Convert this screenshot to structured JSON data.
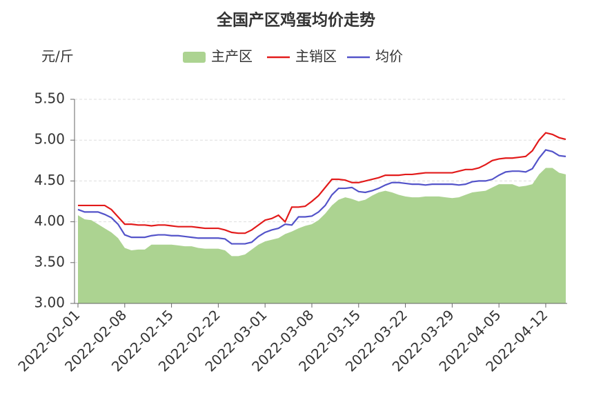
{
  "chart_data": {
    "type": "line",
    "title": "全国产区鸡蛋均价走势",
    "y_unit": "元/斤",
    "categories": [
      "2022-02-01",
      null,
      null,
      null,
      null,
      null,
      null,
      "2022-02-08",
      null,
      null,
      null,
      null,
      null,
      null,
      "2022-02-15",
      null,
      null,
      null,
      null,
      null,
      null,
      "2022-02-22",
      null,
      null,
      null,
      null,
      null,
      null,
      "2022-03-01",
      null,
      null,
      null,
      null,
      null,
      null,
      "2022-03-08",
      null,
      null,
      null,
      null,
      null,
      null,
      "2022-03-15",
      null,
      null,
      null,
      null,
      null,
      null,
      "2022-03-22",
      null,
      null,
      null,
      null,
      null,
      null,
      "2022-03-29",
      null,
      null,
      null,
      null,
      null,
      null,
      "2022-04-05",
      null,
      null,
      null,
      null,
      null,
      null,
      "2022-04-12",
      null,
      null,
      null
    ],
    "series": [
      {
        "name": "主产区",
        "kind": "area",
        "color": "#acd391",
        "values": [
          4.08,
          4.03,
          4.02,
          3.97,
          3.92,
          3.87,
          3.8,
          3.68,
          3.65,
          3.66,
          3.66,
          3.72,
          3.72,
          3.72,
          3.72,
          3.71,
          3.7,
          3.7,
          3.68,
          3.67,
          3.67,
          3.67,
          3.65,
          3.58,
          3.58,
          3.6,
          3.66,
          3.72,
          3.76,
          3.78,
          3.8,
          3.85,
          3.88,
          3.92,
          3.95,
          3.97,
          4.02,
          4.1,
          4.2,
          4.27,
          4.3,
          4.28,
          4.25,
          4.27,
          4.32,
          4.36,
          4.38,
          4.36,
          4.33,
          4.31,
          4.3,
          4.3,
          4.31,
          4.31,
          4.31,
          4.3,
          4.29,
          4.3,
          4.33,
          4.36,
          4.37,
          4.38,
          4.42,
          4.46,
          4.46,
          4.46,
          4.43,
          4.44,
          4.46,
          4.58,
          4.66,
          4.66,
          4.6,
          4.58
        ]
      },
      {
        "name": "主销区",
        "kind": "line",
        "color": "#e21a1a",
        "values": [
          4.2,
          4.2,
          4.2,
          4.2,
          4.2,
          4.15,
          4.06,
          3.97,
          3.97,
          3.96,
          3.96,
          3.95,
          3.96,
          3.96,
          3.95,
          3.94,
          3.94,
          3.94,
          3.93,
          3.92,
          3.92,
          3.92,
          3.9,
          3.87,
          3.86,
          3.86,
          3.9,
          3.96,
          4.02,
          4.04,
          4.08,
          4.0,
          4.18,
          4.18,
          4.19,
          4.25,
          4.32,
          4.42,
          4.52,
          4.52,
          4.51,
          4.48,
          4.48,
          4.5,
          4.52,
          4.54,
          4.57,
          4.57,
          4.57,
          4.58,
          4.58,
          4.59,
          4.6,
          4.6,
          4.6,
          4.6,
          4.6,
          4.62,
          4.64,
          4.64,
          4.66,
          4.7,
          4.75,
          4.77,
          4.78,
          4.78,
          4.79,
          4.8,
          4.87,
          5.0,
          5.09,
          5.07,
          5.03,
          5.01
        ]
      },
      {
        "name": "均价",
        "kind": "line",
        "color": "#5353c9",
        "values": [
          4.15,
          4.12,
          4.12,
          4.12,
          4.09,
          4.05,
          3.97,
          3.84,
          3.81,
          3.81,
          3.81,
          3.83,
          3.84,
          3.84,
          3.83,
          3.83,
          3.82,
          3.81,
          3.8,
          3.8,
          3.8,
          3.8,
          3.79,
          3.73,
          3.73,
          3.73,
          3.75,
          3.82,
          3.87,
          3.9,
          3.92,
          3.97,
          3.96,
          4.06,
          4.06,
          4.07,
          4.12,
          4.2,
          4.33,
          4.41,
          4.41,
          4.42,
          4.37,
          4.36,
          4.38,
          4.41,
          4.45,
          4.48,
          4.48,
          4.47,
          4.46,
          4.46,
          4.45,
          4.46,
          4.46,
          4.46,
          4.46,
          4.45,
          4.46,
          4.49,
          4.5,
          4.5,
          4.52,
          4.57,
          4.61,
          4.62,
          4.62,
          4.61,
          4.65,
          4.78,
          4.88,
          4.86,
          4.81,
          4.8
        ]
      }
    ],
    "ylim": [
      3.0,
      5.5
    ],
    "yticks": [
      {
        "value": 3.0,
        "label": "3.00"
      },
      {
        "value": 3.5,
        "label": "3.50"
      },
      {
        "value": 4.0,
        "label": "4.00"
      },
      {
        "value": 4.5,
        "label": "4.50"
      },
      {
        "value": 5.0,
        "label": "5.00"
      },
      {
        "value": 5.5,
        "label": "5.50"
      }
    ],
    "grid": true
  }
}
